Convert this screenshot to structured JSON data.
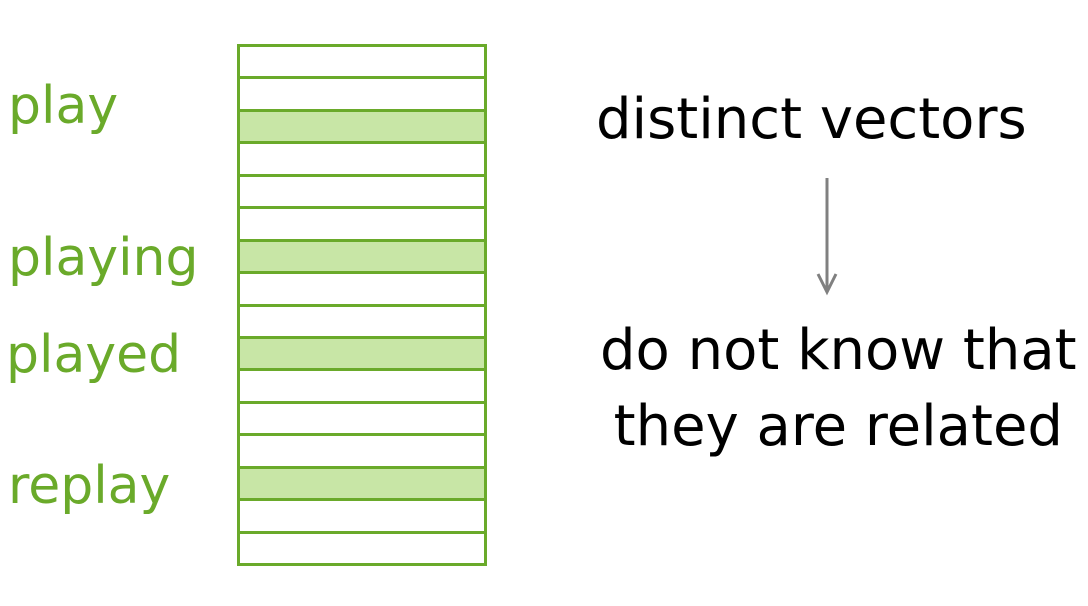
{
  "words": {
    "play": "play",
    "playing": "playing",
    "played": "played",
    "replay": "replay"
  },
  "table": {
    "row_count": 16,
    "highlighted_rows": [
      2,
      6,
      9,
      13
    ]
  },
  "captions": {
    "top": "distinct vectors",
    "bottom_line1": "do not know that",
    "bottom_line2": "they are related"
  },
  "colors": {
    "green": "#6aaa2a",
    "highlight": "#c8e6a6",
    "arrow": "#808080",
    "text": "#000000"
  },
  "icons": {
    "arrow": "down-arrow-icon"
  }
}
